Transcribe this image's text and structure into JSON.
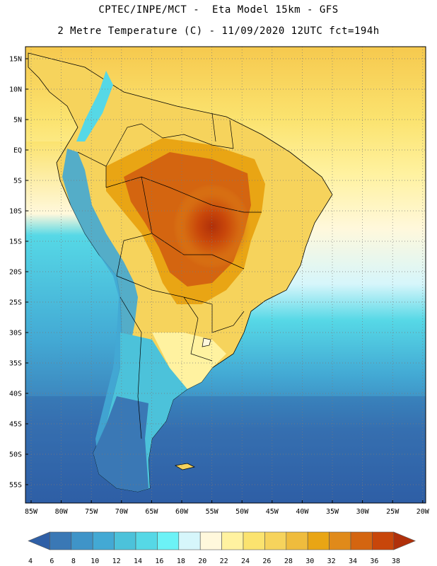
{
  "header": {
    "line1": "CPTEC/INPE/MCT -  Eta Model 15km - GFS",
    "line2": "2 Metre Temperature (C) - 11/09/2020 12UTC fct=194h"
  },
  "axes": {
    "lat_labels": [
      "15N",
      "10N",
      "5N",
      "EQ",
      "5S",
      "10S",
      "15S",
      "20S",
      "25S",
      "30S",
      "35S",
      "40S",
      "45S",
      "50S",
      "55S"
    ],
    "lon_labels": [
      "85W",
      "80W",
      "75W",
      "70W",
      "65W",
      "60W",
      "55W",
      "50W",
      "45W",
      "40W",
      "35W",
      "30W",
      "25W",
      "20W"
    ]
  },
  "legend": {
    "labels": [
      "4",
      "6",
      "8",
      "10",
      "12",
      "14",
      "16",
      "18",
      "20",
      "22",
      "24",
      "26",
      "28",
      "30",
      "32",
      "34",
      "36",
      "38"
    ],
    "colors": [
      "#2f5fa6",
      "#3a78b5",
      "#3f94c8",
      "#43a9d4",
      "#4cc2da",
      "#56d8e6",
      "#6cf2f6",
      "#d6f6fb",
      "#fff8dc",
      "#fff2a0",
      "#fbe36f",
      "#f6d35c",
      "#efbc3d",
      "#e9a514",
      "#e08a1a",
      "#d46510",
      "#c8460a",
      "#b0300a"
    ]
  }
}
